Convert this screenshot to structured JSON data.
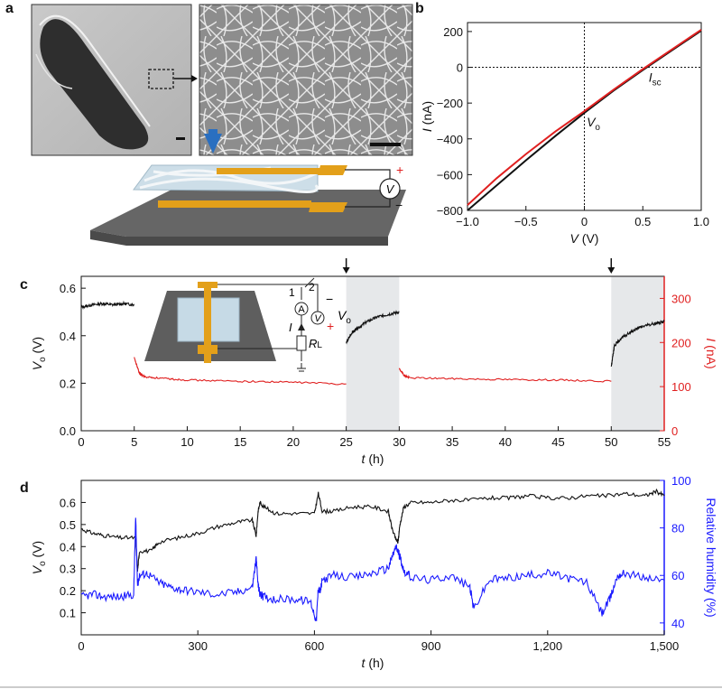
{
  "panels": {
    "a": {
      "label": "a"
    },
    "b": {
      "label": "b"
    },
    "c": {
      "label": "c"
    },
    "d": {
      "label": "d"
    }
  },
  "circuit": {
    "voltmeter": "V",
    "ammeter": "A",
    "current": "I",
    "load": "R",
    "load_sub": "L",
    "switch_pos1": "1",
    "switch_pos2": "2",
    "vo": "V",
    "vo_sub": "o",
    "plus": "+",
    "minus": "−"
  },
  "colors": {
    "black": "#111111",
    "red": "#e02020",
    "blue": "#1a1aff",
    "orange": "#e3a01a",
    "gray_band": "#e6e8ea"
  },
  "chart_data": [
    {
      "id": "b",
      "type": "line",
      "xlabel": "V",
      "xunit": "(V)",
      "ylabel": "I",
      "yunit": "(nA)",
      "xlim": [
        -1.0,
        1.0
      ],
      "ylim": [
        -800,
        250
      ],
      "xticks": [
        -1.0,
        -0.5,
        0,
        0.5,
        1.0
      ],
      "xtick_labels": [
        "−1.0",
        "−0.5",
        "0",
        "0.5",
        "1.0"
      ],
      "yticks": [
        -800,
        -600,
        -400,
        -200,
        0,
        200
      ],
      "ytick_labels": [
        "−800",
        "−600",
        "−400",
        "−200",
        "0",
        "200"
      ],
      "annotations": [
        {
          "text": "I",
          "sub": "sc",
          "x": 0.55,
          "y": -80
        },
        {
          "text": "V",
          "sub": "o",
          "x": 0.02,
          "y": -330
        }
      ],
      "series": [
        {
          "name": "black",
          "color": "#111111",
          "x": [
            -1.0,
            -0.75,
            -0.5,
            -0.25,
            0,
            0.25,
            0.5,
            0.75,
            1.0
          ],
          "y": [
            -800,
            -660,
            -520,
            -385,
            -255,
            -130,
            -15,
            95,
            205
          ]
        },
        {
          "name": "red",
          "color": "#e02020",
          "x": [
            -1.0,
            -0.75,
            -0.5,
            -0.25,
            0,
            0.25,
            0.5,
            0.75,
            1.0
          ],
          "y": [
            -770,
            -620,
            -485,
            -360,
            -245,
            -125,
            -10,
            100,
            210
          ]
        }
      ]
    },
    {
      "id": "c",
      "type": "line",
      "xlabel": "t",
      "xunit": "(h)",
      "ylabel_left": "V",
      "ylabel_left_sub": "o",
      "ylabel_left_unit": "(V)",
      "ylabel_right": "I",
      "ylabel_right_unit": "(nA)",
      "xlim": [
        0,
        55
      ],
      "ylim_left": [
        0.0,
        0.65
      ],
      "ylim_right": [
        0,
        350
      ],
      "xticks": [
        0,
        5,
        10,
        15,
        20,
        25,
        30,
        35,
        40,
        45,
        50,
        55
      ],
      "yticks_left": [
        0.0,
        0.2,
        0.4,
        0.6
      ],
      "ytick_labels_left": [
        "0.0",
        "0.2",
        "0.4",
        "0.6"
      ],
      "yticks_right": [
        0,
        100,
        200,
        300
      ],
      "shaded_intervals": [
        [
          25,
          30
        ],
        [
          50,
          55
        ]
      ],
      "arrows_at": [
        25,
        50
      ],
      "series": [
        {
          "name": "Vo",
          "axis": "left",
          "color": "#111111",
          "segments": [
            {
              "x": [
                0,
                1,
                2,
                3,
                4,
                5
              ],
              "y": [
                0.52,
                0.53,
                0.535,
                0.53,
                0.535,
                0.53
              ]
            },
            {
              "x": [
                25,
                25.5,
                26,
                27,
                28,
                29,
                30
              ],
              "y": [
                0.37,
                0.41,
                0.43,
                0.46,
                0.48,
                0.49,
                0.5
              ]
            },
            {
              "x": [
                50,
                50.3,
                51,
                52,
                53,
                54,
                55
              ],
              "y": [
                0.27,
                0.36,
                0.39,
                0.42,
                0.44,
                0.45,
                0.46
              ]
            }
          ]
        },
        {
          "name": "I",
          "axis": "right",
          "color": "#e02020",
          "segments": [
            {
              "x": [
                5,
                5.5,
                6,
                8,
                10,
                15,
                20,
                25
              ],
              "y": [
                165,
                130,
                122,
                118,
                115,
                112,
                110,
                106
              ]
            },
            {
              "x": [
                30,
                30.5,
                31,
                35,
                40,
                45,
                50
              ],
              "y": [
                140,
                125,
                120,
                118,
                116,
                115,
                112
              ]
            }
          ]
        }
      ]
    },
    {
      "id": "d",
      "type": "line",
      "xlabel": "t",
      "xunit": "(h)",
      "ylabel_left": "V",
      "ylabel_left_sub": "o",
      "ylabel_left_unit": "(V)",
      "ylabel_right": "Relative humidity",
      "ylabel_right_unit": "(%)",
      "xlim": [
        0,
        1500
      ],
      "ylim_left": [
        0.0,
        0.7
      ],
      "ylim_right": [
        35,
        100
      ],
      "xticks": [
        0,
        300,
        600,
        900,
        1200,
        1500
      ],
      "xtick_labels": [
        "0",
        "300",
        "600",
        "900",
        "1,200",
        "1,500"
      ],
      "yticks_left": [
        0.1,
        0.2,
        0.3,
        0.4,
        0.5,
        0.6
      ],
      "yticks_right": [
        40,
        60,
        80,
        100
      ],
      "series": [
        {
          "name": "Vo",
          "axis": "left",
          "color": "#111111",
          "x": [
            0,
            30,
            60,
            100,
            140,
            145,
            150,
            180,
            200,
            250,
            300,
            350,
            400,
            440,
            450,
            455,
            460,
            470,
            500,
            550,
            600,
            610,
            620,
            650,
            700,
            750,
            790,
            800,
            810,
            815,
            820,
            830,
            850,
            900,
            950,
            1000,
            1050,
            1100,
            1150,
            1200,
            1250,
            1300,
            1350,
            1400,
            1450,
            1480,
            1500
          ],
          "y": [
            0.48,
            0.46,
            0.45,
            0.44,
            0.44,
            0.29,
            0.38,
            0.38,
            0.42,
            0.44,
            0.46,
            0.49,
            0.51,
            0.52,
            0.45,
            0.56,
            0.6,
            0.58,
            0.55,
            0.55,
            0.55,
            0.64,
            0.56,
            0.56,
            0.58,
            0.58,
            0.56,
            0.48,
            0.43,
            0.42,
            0.5,
            0.58,
            0.6,
            0.6,
            0.61,
            0.61,
            0.62,
            0.62,
            0.63,
            0.62,
            0.62,
            0.63,
            0.63,
            0.64,
            0.63,
            0.65,
            0.63
          ]
        },
        {
          "name": "RH",
          "axis": "right",
          "color": "#1a1aff",
          "x": [
            0,
            30,
            60,
            100,
            135,
            140,
            145,
            150,
            170,
            200,
            230,
            260,
            300,
            350,
            400,
            440,
            450,
            455,
            460,
            470,
            500,
            550,
            590,
            605,
            610,
            615,
            620,
            650,
            700,
            750,
            790,
            800,
            810,
            815,
            820,
            830,
            850,
            900,
            950,
            1000,
            1010,
            1050,
            1100,
            1150,
            1200,
            1250,
            1300,
            1340,
            1360,
            1380,
            1400,
            1450,
            1500
          ],
          "y": [
            51,
            52,
            51,
            51,
            52,
            84,
            56,
            60,
            61,
            57,
            55,
            54,
            53,
            52,
            53,
            55,
            67,
            56,
            52,
            51,
            50,
            50,
            49,
            41,
            55,
            53,
            58,
            60,
            59,
            61,
            63,
            68,
            72,
            70,
            68,
            62,
            59,
            58,
            60,
            55,
            46,
            58,
            59,
            60,
            61,
            59,
            57,
            44,
            50,
            60,
            61,
            59,
            58
          ]
        }
      ]
    }
  ]
}
